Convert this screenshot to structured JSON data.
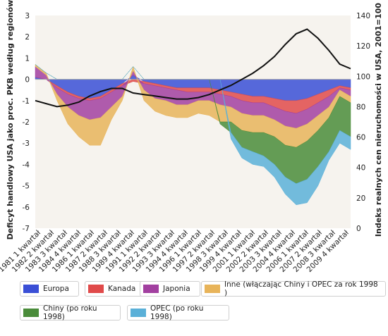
{
  "chart_data": {
    "type": "area",
    "ylabel_left": "Deficyt handlowy USA jako proc. PKB według regionów",
    "ylabel_right": "Indeks realnych cen nieruchomości w USA, 2001=100",
    "ylim_left": [
      -7,
      3
    ],
    "yticks_left": [
      3,
      2,
      1,
      0,
      -1,
      -2,
      -3,
      -4,
      -5,
      -6,
      -7
    ],
    "ylim_right": [
      0,
      140
    ],
    "yticks_right": [
      140,
      120,
      100,
      80,
      60,
      40,
      20,
      0
    ],
    "x_tick_labels": [
      "1981 1 kwartał",
      "1982 2 kwartał",
      "1983 3 kwartał",
      "1984 4 kwartał",
      "1986 1 kwartał",
      "1987 2 kwartał",
      "1988 3 kwartał",
      "1989 4 kwartał",
      "1991 1 kwartał",
      "1992 2 kwartał",
      "1993 3 kwartał",
      "1994 4 kwartał",
      "1996 1 kwartał",
      "1997 2 kwartał",
      "1998 3 kwartał",
      "1999 4 kwartał",
      "2001 1 kwartał",
      "2002 2 kwartał",
      "2003 3 kwartał",
      "2004 4 kwartał",
      "2006 1 kwartał",
      "2007 2 kwartał",
      "2008 3 kwartał",
      "2009 4 kwartał"
    ],
    "x": [
      1981,
      1982,
      1983,
      1984,
      1985,
      1986,
      1987,
      1988,
      1989,
      1990,
      1991,
      1992,
      1993,
      1994,
      1995,
      1996,
      1997,
      1998,
      1999,
      2000,
      2001,
      2002,
      2003,
      2004,
      2005,
      2006,
      2007,
      2008,
      2009,
      2010
    ],
    "series": [
      {
        "name": "Europa",
        "color": "#3a4fd6",
        "values": [
          0.1,
          0.0,
          -0.3,
          -0.6,
          -0.8,
          -0.9,
          -0.8,
          -0.5,
          -0.2,
          0.2,
          -0.1,
          -0.2,
          -0.3,
          -0.4,
          -0.4,
          -0.4,
          -0.4,
          -0.5,
          -0.6,
          -0.7,
          -0.8,
          -0.8,
          -0.9,
          -1.0,
          -1.0,
          -0.9,
          -0.7,
          -0.5,
          -0.3,
          -0.4
        ]
      },
      {
        "name": "Kanada",
        "color": "#e04a4a",
        "values": [
          0.0,
          0.0,
          -0.1,
          -0.1,
          -0.1,
          -0.1,
          -0.1,
          -0.1,
          -0.1,
          -0.1,
          -0.1,
          -0.1,
          -0.1,
          -0.1,
          -0.2,
          -0.2,
          -0.2,
          -0.2,
          -0.2,
          -0.3,
          -0.3,
          -0.3,
          -0.4,
          -0.5,
          -0.6,
          -0.5,
          -0.4,
          -0.3,
          -0.1,
          -0.1
        ]
      },
      {
        "name": "Japonia",
        "color": "#a240a0",
        "values": [
          0.5,
          0.2,
          -0.3,
          -0.6,
          -0.8,
          -0.9,
          -0.9,
          -0.7,
          -0.5,
          0.2,
          -0.3,
          -0.6,
          -0.6,
          -0.7,
          -0.6,
          -0.4,
          -0.4,
          -0.5,
          -0.5,
          -0.6,
          -0.6,
          -0.6,
          -0.6,
          -0.7,
          -0.7,
          -0.7,
          -0.6,
          -0.5,
          -0.1,
          -0.3
        ]
      },
      {
        "name": "Inne (włączając Chiny i OPEC za rok 1998 )",
        "color": "#e8b45a",
        "values": [
          0.1,
          0.1,
          -0.3,
          -0.8,
          -1.0,
          -1.2,
          -1.3,
          -0.6,
          -0.2,
          0.2,
          -0.5,
          -0.6,
          -0.7,
          -0.6,
          -0.6,
          -0.6,
          -0.7,
          -0.8,
          -0.7,
          -0.8,
          -0.8,
          -0.8,
          -0.8,
          -0.9,
          -0.9,
          -0.8,
          -0.7,
          -0.5,
          -0.3,
          -0.3
        ]
      },
      {
        "name": "Chiny (po roku 1998)",
        "color": "#4a8c3a",
        "values": [
          0,
          0,
          0,
          0,
          0,
          0,
          0,
          0,
          0,
          0,
          0,
          0,
          0,
          0,
          0,
          0,
          0,
          -0.1,
          -0.5,
          -0.8,
          -0.9,
          -1.1,
          -1.3,
          -1.5,
          -1.7,
          -1.8,
          -1.7,
          -1.6,
          -1.6,
          -1.6
        ]
      },
      {
        "name": "OPEC (po roku 1998)",
        "color": "#5ab0d8",
        "values": [
          0,
          0,
          0,
          0,
          0,
          0,
          0,
          0,
          0,
          0,
          0,
          0,
          0,
          0,
          0,
          0,
          0,
          0,
          -0.3,
          -0.5,
          -0.6,
          -0.5,
          -0.6,
          -0.8,
          -1.0,
          -1.1,
          -0.9,
          -0.4,
          -0.6,
          -0.6
        ]
      }
    ],
    "line_series": {
      "axis": "right",
      "color": "#111111",
      "values": [
        84,
        82,
        80,
        81,
        83,
        87,
        90,
        92,
        92,
        89,
        88,
        87,
        86,
        85,
        85,
        86,
        88,
        91,
        94,
        98,
        102,
        107,
        113,
        121,
        128,
        131,
        125,
        117,
        108,
        105
      ]
    },
    "legend_placement": "bottom",
    "grid": false
  },
  "legend": [
    {
      "label": "Europa",
      "color": "#3a4fd6"
    },
    {
      "label": "Kanada",
      "color": "#e04a4a"
    },
    {
      "label": "Japonia",
      "color": "#a240a0"
    },
    {
      "label": "Inne (włączając Chiny i OPEC za rok 1998 )",
      "color": "#e8b45a"
    },
    {
      "label": "Chiny (po roku 1998)",
      "color": "#4a8c3a"
    },
    {
      "label": "OPEC (po roku 1998)",
      "color": "#5ab0d8"
    }
  ]
}
